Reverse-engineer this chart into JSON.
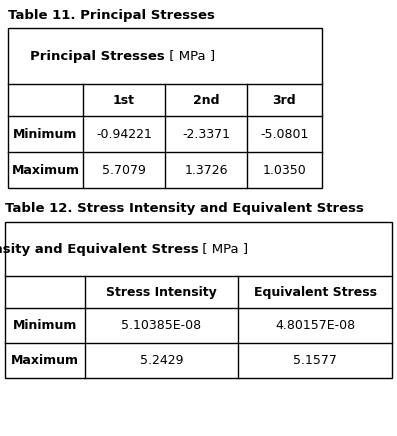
{
  "table1_title": "Table 11. Principal Stresses",
  "table1_header_bold": "Principal Stresses",
  "table1_header_normal": " [ MPa ]",
  "table1_col_headers": [
    "",
    "1st",
    "2nd",
    "3rd"
  ],
  "table1_rows": [
    [
      "Minimum",
      "-0.94221",
      "-2.3371",
      "-5.0801"
    ],
    [
      "Maximum",
      "5.7079",
      "1.3726",
      "1.0350"
    ]
  ],
  "table2_title": "Table 12. Stress Intensity and Equivalent Stress",
  "table2_header_bold": "Stress Intensity and Equivalent Stress",
  "table2_header_normal": " [ MPa ]",
  "table2_col_headers": [
    "",
    "Stress Intensity",
    "Equivalent Stress"
  ],
  "table2_rows": [
    [
      "Minimum",
      "5.10385E-08",
      "4.80157E-08"
    ],
    [
      "Maximum",
      "5.2429",
      "5.1577"
    ]
  ],
  "bg_color": "#ffffff",
  "text_color": "#000000",
  "border_color": "#000000",
  "title_fontsize": 9.5,
  "header_fontsize": 9.5,
  "cell_fontsize": 9.0
}
